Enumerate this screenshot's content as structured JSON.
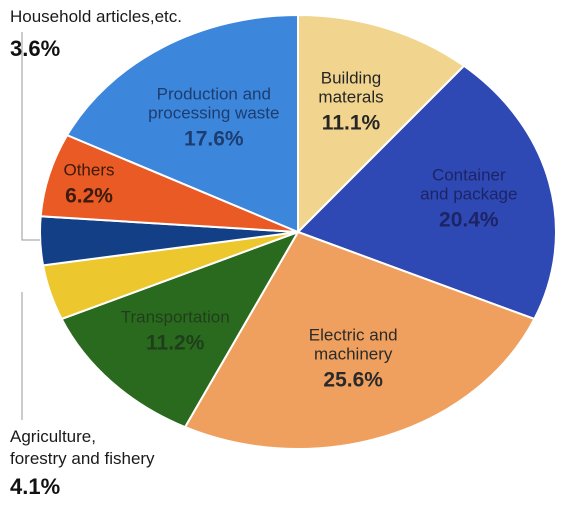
{
  "chart_data": {
    "type": "pie",
    "title": "",
    "slices": [
      {
        "label": "Building materals",
        "label_lines": [
          "Building",
          "materals"
        ],
        "value": 11.1,
        "display": "11.1%",
        "color": "#f1d58e",
        "text_color": "#262626"
      },
      {
        "label": "Container and package",
        "label_lines": [
          "Container",
          "and package"
        ],
        "value": 20.4,
        "display": "20.4%",
        "color": "#2f49b4",
        "text_color": "#1c2466"
      },
      {
        "label": "Electric and machinery",
        "label_lines": [
          "Electric and",
          "machinery"
        ],
        "value": 25.6,
        "display": "25.6%",
        "color": "#f0a05e",
        "text_color": "#2a2a2a"
      },
      {
        "label": "Transportation",
        "label_lines": [
          "Transportation"
        ],
        "value": 11.2,
        "display": "11.2%",
        "color": "#2a6a1f",
        "text_color": "#1f3f1a"
      },
      {
        "label": "Agriculture, forestry and fishery",
        "label_lines": [
          "Agriculture,",
          "forestry and fishery"
        ],
        "value": 4.1,
        "display": "4.1%",
        "color": "#ecc72e",
        "text_color": "#111111"
      },
      {
        "label": "Household articles,etc.",
        "label_lines": [
          "Household articles,etc."
        ],
        "value": 3.6,
        "display": "3.6%",
        "color": "#123f85",
        "text_color": "#111111"
      },
      {
        "label": "Others",
        "label_lines": [
          "Others"
        ],
        "value": 6.2,
        "display": "6.2%",
        "color": "#ea5a25",
        "text_color": "#3b1b0c"
      },
      {
        "label": "Production and processing waste",
        "label_lines": [
          "Production and",
          "processing waste"
        ],
        "value": 17.6,
        "display": "17.6%",
        "color": "#3c86db",
        "text_color": "#1d3d70"
      }
    ],
    "start": "top",
    "direction": "clockwise",
    "outside_labels": [
      "Household articles,etc.",
      "Agriculture, forestry and fishery"
    ]
  }
}
